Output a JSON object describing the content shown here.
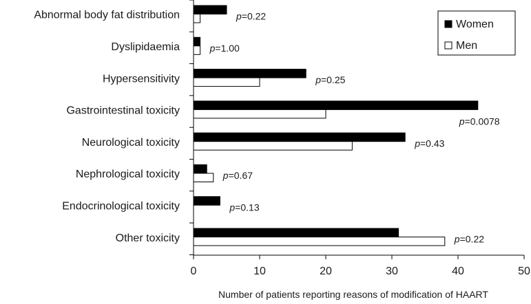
{
  "chart_data": {
    "type": "bar",
    "orientation": "horizontal",
    "categories": [
      "Abnormal body fat distribution",
      "Dyslipidaemia",
      "Hypersensitivity",
      "Gastrointestinal toxicity",
      "Neurological toxicity",
      "Nephrological toxicity",
      "Endocrinological toxicity",
      "Other toxicity"
    ],
    "series": [
      {
        "name": "Women",
        "values": [
          5,
          1,
          17,
          43,
          32,
          2,
          4,
          31
        ],
        "color": "#000000"
      },
      {
        "name": "Men",
        "values": [
          1,
          1,
          10,
          20,
          24,
          3,
          0,
          38
        ],
        "color": "#ffffff"
      }
    ],
    "p_values": [
      "0.22",
      "1.00",
      "0.25",
      "0.0078",
      "0.43",
      "0.67",
      "0.13",
      "0.22"
    ],
    "p_prefix": "p",
    "xlabel": "Number of patients reporting reasons of modification of HAART",
    "xlim": [
      0,
      50
    ],
    "xticks": [
      0,
      10,
      20,
      30,
      40,
      50
    ],
    "grid": false,
    "legend_position": "top-right"
  }
}
